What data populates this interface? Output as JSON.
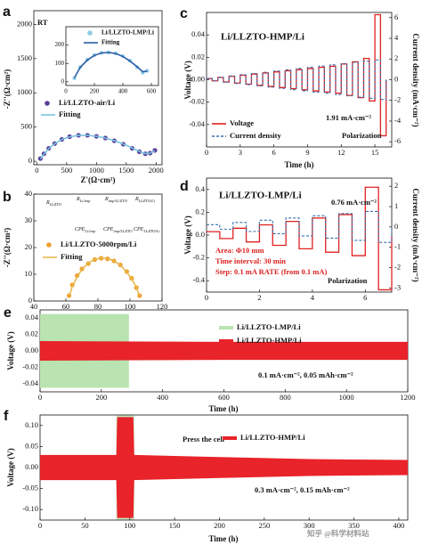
{
  "chart_data": [
    {
      "type": "scatter",
      "label": "a",
      "annotations": [
        "RT"
      ],
      "xlabel": "Z'(Ω·cm²)",
      "ylabel": "-Z''(Ω·cm²)",
      "xlim": [
        -50,
        2100
      ],
      "ylim": [
        -50,
        2200
      ],
      "xticks": [
        0,
        500,
        1000,
        1500,
        2000
      ],
      "yticks": [
        0,
        500,
        1000,
        1500,
        2000
      ],
      "series": [
        {
          "name": "Li/LLZTO-air/Li",
          "color": "#5a3d9a",
          "mode": "markers",
          "x": [
            60,
            120,
            200,
            300,
            420,
            550,
            700,
            850,
            1000,
            1150,
            1300,
            1450,
            1600,
            1720,
            1820,
            1900,
            1980
          ],
          "values": [
            40,
            110,
            190,
            260,
            320,
            360,
            380,
            380,
            365,
            340,
            300,
            250,
            190,
            140,
            110,
            120,
            160
          ]
        },
        {
          "name": "Fitting",
          "color": "#79c3df",
          "mode": "line",
          "x": [
            60,
            120,
            200,
            300,
            420,
            550,
            700,
            850,
            1000,
            1150,
            1300,
            1450,
            1600,
            1720,
            1820,
            1900,
            1980
          ],
          "values": [
            35,
            105,
            185,
            258,
            318,
            358,
            378,
            379,
            366,
            340,
            302,
            252,
            195,
            145,
            112,
            118,
            155
          ]
        }
      ]
    },
    {
      "type": "scatter",
      "xlim": [
        0,
        650
      ],
      "ylim": [
        -20,
        300
      ],
      "xticks": [
        0,
        200,
        400,
        600
      ],
      "yticks": [
        0,
        100,
        200
      ],
      "series": [
        {
          "name": "Li/LLZTO-LMP/Li",
          "color": "#8fcbe5",
          "mode": "markers",
          "x": [
            60,
            100,
            150,
            200,
            250,
            300,
            350,
            400,
            450,
            500,
            540,
            570
          ],
          "values": [
            20,
            80,
            120,
            145,
            158,
            160,
            155,
            140,
            115,
            80,
            50,
            60
          ]
        },
        {
          "name": "Fitting",
          "color": "#2a5ea8",
          "mode": "line",
          "x": [
            60,
            100,
            150,
            200,
            250,
            300,
            350,
            400,
            450,
            500,
            540,
            570
          ],
          "values": [
            22,
            78,
            118,
            144,
            157,
            160,
            154,
            138,
            113,
            82,
            55,
            58
          ]
        }
      ]
    },
    {
      "type": "scatter",
      "label": "b",
      "xlabel": "Z'(Ω·cm²)",
      "ylabel": "-Z''(Ω·cm²)",
      "xlim": [
        40,
        120
      ],
      "ylim": [
        0,
        40
      ],
      "xticks": [
        40,
        60,
        80,
        100,
        120
      ],
      "yticks": [
        0,
        10,
        20,
        30,
        40
      ],
      "circuit_labels": [
        {
          "symbol": "R",
          "sub": "LLZTO"
        },
        {
          "symbol": "R",
          "sub": "Li/imp"
        },
        {
          "symbol": "R",
          "sub": "imp/LLZTO"
        },
        {
          "symbol": "R",
          "sub": "LLZTO/Li"
        },
        {
          "symbol": "CPE",
          "sub": "Li/imp"
        },
        {
          "symbol": "CPE",
          "sub": "imp/LLZTO"
        },
        {
          "symbol": "CPE",
          "sub": "LLZTO/Li"
        }
      ],
      "series": [
        {
          "name": "Li/LLZTO-5000rpm/Li",
          "color": "#f0a030",
          "mode": "markers",
          "x": [
            62,
            64,
            67,
            70,
            74,
            78,
            82,
            86,
            90,
            94,
            98,
            101,
            104,
            106
          ],
          "values": [
            2,
            6,
            9.5,
            12,
            14,
            15.5,
            16,
            15.8,
            15,
            13.5,
            11,
            8.5,
            5,
            2
          ]
        },
        {
          "name": "Fitting",
          "color": "#e6b84c",
          "mode": "line",
          "x": [
            62,
            64,
            67,
            70,
            74,
            78,
            82,
            86,
            90,
            94,
            98,
            101,
            104,
            106
          ],
          "values": [
            1.5,
            5.5,
            9,
            11.8,
            14.2,
            15.6,
            16.1,
            15.9,
            15.1,
            13.4,
            10.8,
            8.3,
            5.2,
            1.8
          ]
        }
      ]
    },
    {
      "type": "line",
      "label": "c",
      "title": "Li/LLZTO-HMP/Li",
      "annotations": [
        "1.91 mA·cm⁻²",
        "Polarization"
      ],
      "xlabel": "Time (h)",
      "ylabel": "Voltage (V)",
      "y2label": "Current density (mA·cm⁻²)",
      "xlim": [
        0,
        16.5
      ],
      "ylim": [
        -0.06,
        0.06
      ],
      "y2lim": [
        -6.5,
        6.5
      ],
      "xticks": [
        0,
        3,
        6,
        9,
        12,
        15
      ],
      "yticks": [
        -0.04,
        -0.02,
        {
          "value": 0,
          "label": "0.00"
        },
        0.02,
        0.04
      ],
      "y2ticks": [
        -6,
        -4,
        -2,
        0,
        2,
        4,
        6
      ],
      "x": [
        0,
        0.5,
        1,
        1.5,
        2,
        2.5,
        3,
        3.5,
        4,
        4.5,
        5,
        5.5,
        6,
        6.5,
        7,
        7.5,
        8,
        8.5,
        9,
        9.5,
        10,
        10.5,
        11,
        11.5,
        12,
        12.5,
        13,
        13.5,
        14,
        14.5,
        15,
        15.5,
        16
      ],
      "series": [
        {
          "name": "Voltage",
          "color": "#e02020",
          "dash": false,
          "values": [
            0.001,
            -0.001,
            0.002,
            -0.002,
            0.003,
            -0.003,
            0.004,
            -0.004,
            0.005,
            -0.005,
            0.006,
            -0.006,
            0.007,
            -0.007,
            0.008,
            -0.008,
            0.009,
            -0.009,
            0.01,
            -0.01,
            0.011,
            -0.011,
            0.012,
            -0.012,
            0.014,
            -0.014,
            0.016,
            -0.016,
            0.019,
            -0.019,
            0.058,
            -0.05,
            0
          ]
        },
        {
          "name": "Current density",
          "color": "#3a6fb0",
          "dash": true,
          "axis": "y2",
          "values": [
            0.12,
            -0.12,
            0.24,
            -0.24,
            0.36,
            -0.36,
            0.48,
            -0.48,
            0.6,
            -0.6,
            0.72,
            -0.72,
            0.84,
            -0.84,
            0.96,
            -0.96,
            1.08,
            -1.08,
            1.2,
            -1.2,
            1.32,
            -1.32,
            1.44,
            -1.44,
            1.56,
            -1.56,
            1.68,
            -1.68,
            1.8,
            -1.8,
            1.91,
            -1.91,
            0
          ]
        }
      ]
    },
    {
      "type": "line",
      "label": "d",
      "title": "Li/LLZTO-LMP/Li",
      "annotations": [
        "0.76 mA·cm⁻²",
        "Area: Φ10 mm",
        "Time interval: 30 min",
        "Step: 0.1 mA RATE (from 0.1 mA)",
        "Polarization"
      ],
      "xlabel": "Time (h)",
      "ylabel": "Voltage (V)",
      "y2label": "Current density (mA·cm⁻²)",
      "xlim": [
        0,
        7
      ],
      "ylim": [
        -0.5,
        0.5
      ],
      "y2lim": [
        -3.2,
        2.4
      ],
      "xticks": [
        0,
        2,
        4,
        6
      ],
      "yticks": [
        -0.4,
        -0.2,
        {
          "value": 0,
          "label": "0.0"
        },
        0.2,
        0.4
      ],
      "y2ticks": [
        -3,
        -2,
        -1,
        0,
        1,
        2
      ],
      "x": [
        0,
        0.5,
        1,
        1.5,
        2,
        2.5,
        3,
        3.5,
        4,
        4.5,
        5,
        5.5,
        6,
        6.5,
        7
      ],
      "series": [
        {
          "name": "Voltage",
          "color": "#e02020",
          "dash": false,
          "values": [
            0.03,
            -0.03,
            0.06,
            -0.06,
            0.09,
            -0.09,
            0.12,
            -0.12,
            0.15,
            -0.15,
            0.18,
            -0.18,
            0.42,
            -0.48,
            0
          ]
        },
        {
          "name": "Current density",
          "color": "#3a6fb0",
          "dash": true,
          "axis": "y2",
          "values": [
            0.11,
            -0.11,
            0.22,
            -0.22,
            0.33,
            -0.33,
            0.44,
            -0.44,
            0.55,
            -0.55,
            0.66,
            -0.66,
            0.76,
            -0.76,
            0
          ]
        }
      ]
    },
    {
      "type": "band",
      "label": "e",
      "annotations": [
        "0.1 mA·cm⁻², 0.05 mAh·cm⁻²"
      ],
      "xlabel": "Time (h)",
      "ylabel": "Voltage (V)",
      "xlim": [
        0,
        1200
      ],
      "ylim": [
        -0.05,
        0.05
      ],
      "xticks": [
        0,
        200,
        400,
        600,
        800,
        1000,
        1200
      ],
      "yticks": [
        -0.04,
        -0.02,
        {
          "value": 0,
          "label": "0.00"
        },
        0.02,
        0.04
      ],
      "series": [
        {
          "name": "Li/LLZTO-LMP/Li",
          "color": "#b9e3b0",
          "x": [
            0,
            290
          ],
          "upper": [
            0.045,
            0.045
          ],
          "lower": [
            -0.045,
            -0.045
          ]
        },
        {
          "name": "Li/LLZTO-HMP/Li",
          "color": "#e8232a",
          "x": [
            0,
            600,
            1200
          ],
          "upper": [
            0.012,
            0.011,
            0.011
          ],
          "lower": [
            -0.012,
            -0.011,
            -0.011
          ]
        }
      ]
    },
    {
      "type": "band",
      "label": "f",
      "annotations": [
        "Press the cell",
        "0.3 mA·cm⁻², 0.15 mAh·cm⁻²",
        "知乎 @科学材料站"
      ],
      "xlabel": "Time (h)",
      "ylabel": "Voltage (V)",
      "highlight_x": [
        85,
        105
      ],
      "highlight_color": "#c8e8c0",
      "xlim": [
        0,
        410
      ],
      "ylim": [
        -0.125,
        0.125
      ],
      "xticks": [
        0,
        50,
        100,
        150,
        200,
        250,
        300,
        350,
        400
      ],
      "yticks": [
        {
          "value": -0.1,
          "label": "-0.10"
        },
        -0.05,
        {
          "value": 0,
          "label": "0.00"
        },
        0.05,
        {
          "value": 0.1,
          "label": "0.10"
        }
      ],
      "series": [
        {
          "name": "Li/LLZTO-HMP/Li",
          "color": "#e8232a",
          "x": [
            0,
            85,
            86,
            104,
            105,
            200,
            300,
            410
          ],
          "upper": [
            0.03,
            0.03,
            0.12,
            0.12,
            0.03,
            0.025,
            0.02,
            0.018
          ],
          "lower": [
            -0.03,
            -0.03,
            -0.12,
            -0.12,
            -0.03,
            -0.025,
            -0.02,
            -0.018
          ]
        }
      ]
    }
  ]
}
